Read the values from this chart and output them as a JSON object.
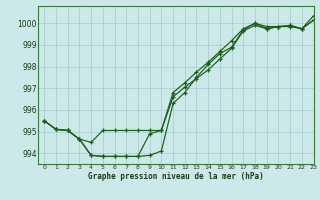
{
  "xlabel": "Graphe pression niveau de la mer (hPa)",
  "bg_color": "#cce8e8",
  "grid_color": "#aacfcf",
  "line_color": "#1a5c1a",
  "ylim": [
    993.5,
    1000.8
  ],
  "xlim": [
    -0.5,
    23
  ],
  "yticks": [
    994,
    995,
    996,
    997,
    998,
    999,
    1000
  ],
  "xticks": [
    0,
    1,
    2,
    3,
    4,
    5,
    6,
    7,
    8,
    9,
    10,
    11,
    12,
    13,
    14,
    15,
    16,
    17,
    18,
    19,
    20,
    21,
    22,
    23
  ],
  "series1": [
    995.5,
    995.1,
    995.05,
    994.65,
    993.9,
    993.85,
    993.85,
    993.85,
    993.85,
    993.9,
    994.1,
    996.3,
    996.8,
    997.5,
    998.1,
    998.6,
    998.9,
    999.7,
    1000.0,
    999.75,
    999.85,
    999.9,
    999.75,
    1000.35
  ],
  "series2": [
    995.5,
    995.1,
    995.05,
    994.65,
    994.5,
    995.05,
    995.05,
    995.05,
    995.05,
    995.05,
    995.05,
    996.8,
    997.25,
    997.75,
    998.2,
    998.7,
    999.2,
    999.75,
    1000.0,
    999.85,
    999.85,
    999.85,
    999.75,
    1000.15
  ],
  "series3": [
    995.5,
    995.1,
    995.05,
    994.65,
    993.9,
    993.85,
    993.85,
    993.85,
    993.85,
    994.9,
    995.05,
    996.6,
    997.05,
    997.45,
    997.85,
    998.35,
    998.85,
    999.65,
    999.9,
    999.75,
    999.85,
    999.9,
    999.75,
    1000.15
  ]
}
